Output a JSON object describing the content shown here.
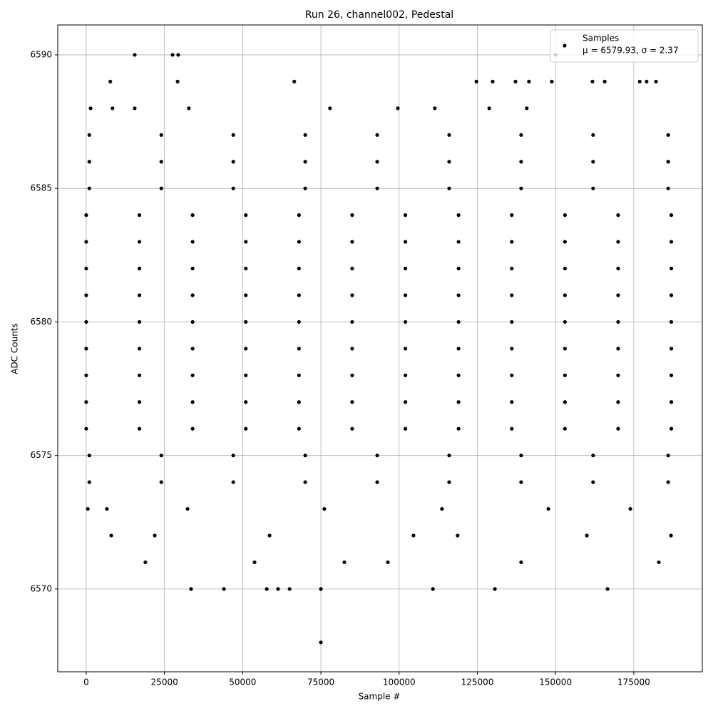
{
  "chart_data": {
    "type": "scatter",
    "title": "Run 26, channel002, Pedestal",
    "x_label": "Sample #",
    "y_label": "ADC Counts",
    "xlim": [
      -9100,
      196900
    ],
    "ylim": [
      6566.9,
      6591.12
    ],
    "xticks": [
      0,
      25000,
      50000,
      75000,
      100000,
      125000,
      150000,
      175000
    ],
    "yticks": [
      6570,
      6575,
      6580,
      6585,
      6590
    ],
    "grid": true,
    "legend_position": "upper right",
    "legend_note": "μ = 6579.93, σ = 2.37",
    "series": [
      {
        "name": "Samples",
        "color": "#000000",
        "x": [
          0,
          17000,
          34000,
          51000,
          68000,
          85000,
          102000,
          119000,
          136000,
          153000,
          170000,
          187000,
          0,
          17000,
          34000,
          51000,
          68000,
          85000,
          102000,
          119000,
          136000,
          153000,
          170000,
          187000,
          0,
          17000,
          34000,
          51000,
          68000,
          85000,
          102000,
          119000,
          136000,
          153000,
          170000,
          187000,
          0,
          17000,
          34000,
          51000,
          68000,
          85000,
          102000,
          119000,
          136000,
          153000,
          170000,
          187000,
          0,
          17000,
          34000,
          51000,
          68000,
          85000,
          102000,
          119000,
          136000,
          153000,
          170000,
          187000,
          0,
          17000,
          34000,
          51000,
          68000,
          85000,
          102000,
          119000,
          136000,
          153000,
          170000,
          187000,
          0,
          17000,
          34000,
          51000,
          68000,
          85000,
          102000,
          119000,
          136000,
          153000,
          170000,
          187000,
          0,
          17000,
          34000,
          51000,
          68000,
          85000,
          102000,
          119000,
          136000,
          153000,
          170000,
          187000,
          0,
          17000,
          34000,
          51000,
          68000,
          85000,
          102000,
          119000,
          136000,
          153000,
          170000,
          187000,
          1000,
          24000,
          47000,
          70000,
          93000,
          116000,
          139000,
          162000,
          186000,
          1000,
          24000,
          47000,
          70000,
          93000,
          116000,
          139000,
          162000,
          186000,
          1000,
          24000,
          47000,
          70000,
          93000,
          116000,
          139000,
          162000,
          186000,
          1000,
          24000,
          47000,
          70000,
          93000,
          116000,
          139000,
          162000,
          186000,
          1000,
          24000,
          47000,
          70000,
          93000,
          116000,
          139000,
          162000,
          186000,
          15500,
          27600,
          29400,
          150000,
          7700,
          29200,
          66500,
          124700,
          129900,
          137200,
          141500,
          148800,
          161800,
          165700,
          176900,
          179100,
          182100,
          1400,
          8400,
          15500,
          32800,
          77900,
          99600,
          111400,
          128800,
          140800,
          75000,
          33500,
          44000,
          57700,
          61300,
          65000,
          75000,
          110800,
          130600,
          166600,
          18900,
          53800,
          82500,
          96400,
          139000,
          183000,
          8000,
          21900,
          58600,
          104600,
          118700,
          160000,
          186900,
          500,
          6600,
          32400,
          76100,
          113700,
          147700,
          173900
        ],
        "values": [
          6576,
          6576,
          6576,
          6576,
          6576,
          6576,
          6576,
          6576,
          6576,
          6576,
          6576,
          6576,
          6577,
          6577,
          6577,
          6577,
          6577,
          6577,
          6577,
          6577,
          6577,
          6577,
          6577,
          6577,
          6578,
          6578,
          6578,
          6578,
          6578,
          6578,
          6578,
          6578,
          6578,
          6578,
          6578,
          6578,
          6579,
          6579,
          6579,
          6579,
          6579,
          6579,
          6579,
          6579,
          6579,
          6579,
          6579,
          6579,
          6580,
          6580,
          6580,
          6580,
          6580,
          6580,
          6580,
          6580,
          6580,
          6580,
          6580,
          6580,
          6581,
          6581,
          6581,
          6581,
          6581,
          6581,
          6581,
          6581,
          6581,
          6581,
          6581,
          6581,
          6582,
          6582,
          6582,
          6582,
          6582,
          6582,
          6582,
          6582,
          6582,
          6582,
          6582,
          6582,
          6583,
          6583,
          6583,
          6583,
          6583,
          6583,
          6583,
          6583,
          6583,
          6583,
          6583,
          6583,
          6584,
          6584,
          6584,
          6584,
          6584,
          6584,
          6584,
          6584,
          6584,
          6584,
          6584,
          6584,
          6574,
          6574,
          6574,
          6574,
          6574,
          6574,
          6574,
          6574,
          6574,
          6575,
          6575,
          6575,
          6575,
          6575,
          6575,
          6575,
          6575,
          6575,
          6585,
          6585,
          6585,
          6585,
          6585,
          6585,
          6585,
          6585,
          6585,
          6586,
          6586,
          6586,
          6586,
          6586,
          6586,
          6586,
          6586,
          6586,
          6587,
          6587,
          6587,
          6587,
          6587,
          6587,
          6587,
          6587,
          6587,
          6590,
          6590,
          6590,
          6590,
          6589,
          6589,
          6589,
          6589,
          6589,
          6589,
          6589,
          6589,
          6589,
          6589,
          6589,
          6589,
          6589,
          6588,
          6588,
          6588,
          6588,
          6588,
          6588,
          6588,
          6588,
          6588,
          6568,
          6570,
          6570,
          6570,
          6570,
          6570,
          6570,
          6570,
          6570,
          6570,
          6571,
          6571,
          6571,
          6571,
          6571,
          6571,
          6572,
          6572,
          6572,
          6572,
          6572,
          6572,
          6572,
          6573,
          6573,
          6573,
          6573,
          6573,
          6573,
          6573
        ]
      }
    ]
  }
}
